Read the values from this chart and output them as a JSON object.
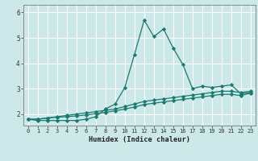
{
  "title": "",
  "xlabel": "Humidex (Indice chaleur)",
  "ylabel": "",
  "background_color": "#cce8e8",
  "grid_color": "#ffffff",
  "line_color": "#1a7a6e",
  "xlim": [
    -0.5,
    23.5
  ],
  "ylim": [
    1.55,
    6.3
  ],
  "yticks": [
    2,
    3,
    4,
    5,
    6
  ],
  "xticks": [
    0,
    1,
    2,
    3,
    4,
    5,
    6,
    7,
    8,
    9,
    10,
    11,
    12,
    13,
    14,
    15,
    16,
    17,
    18,
    19,
    20,
    21,
    22,
    23
  ],
  "series1_x": [
    0,
    1,
    2,
    3,
    4,
    5,
    6,
    7,
    8,
    9,
    10,
    11,
    12,
    13,
    14,
    15,
    16,
    17,
    18,
    19,
    20,
    21,
    22,
    23
  ],
  "series1_y": [
    1.8,
    1.75,
    1.75,
    1.75,
    1.75,
    1.75,
    1.8,
    1.9,
    2.2,
    2.4,
    3.05,
    4.35,
    5.7,
    5.05,
    5.35,
    4.6,
    3.95,
    3.0,
    3.1,
    3.05,
    3.1,
    3.15,
    2.8,
    2.85
  ],
  "series2_x": [
    0,
    1,
    2,
    3,
    4,
    5,
    6,
    7,
    8,
    9,
    10,
    11,
    12,
    13,
    14,
    15,
    16,
    17,
    18,
    19,
    20,
    21,
    22,
    23
  ],
  "series2_y": [
    1.8,
    1.8,
    1.85,
    1.9,
    1.95,
    2.0,
    2.05,
    2.1,
    2.15,
    2.2,
    2.3,
    2.4,
    2.5,
    2.55,
    2.6,
    2.65,
    2.7,
    2.75,
    2.8,
    2.85,
    2.9,
    2.9,
    2.85,
    2.9
  ],
  "series3_x": [
    0,
    1,
    2,
    3,
    4,
    5,
    6,
    7,
    8,
    9,
    10,
    11,
    12,
    13,
    14,
    15,
    16,
    17,
    18,
    19,
    20,
    21,
    22,
    23
  ],
  "series3_y": [
    1.8,
    1.8,
    1.85,
    1.88,
    1.9,
    1.93,
    1.97,
    2.02,
    2.07,
    2.13,
    2.2,
    2.28,
    2.38,
    2.43,
    2.48,
    2.53,
    2.58,
    2.63,
    2.68,
    2.73,
    2.78,
    2.78,
    2.73,
    2.83
  ]
}
